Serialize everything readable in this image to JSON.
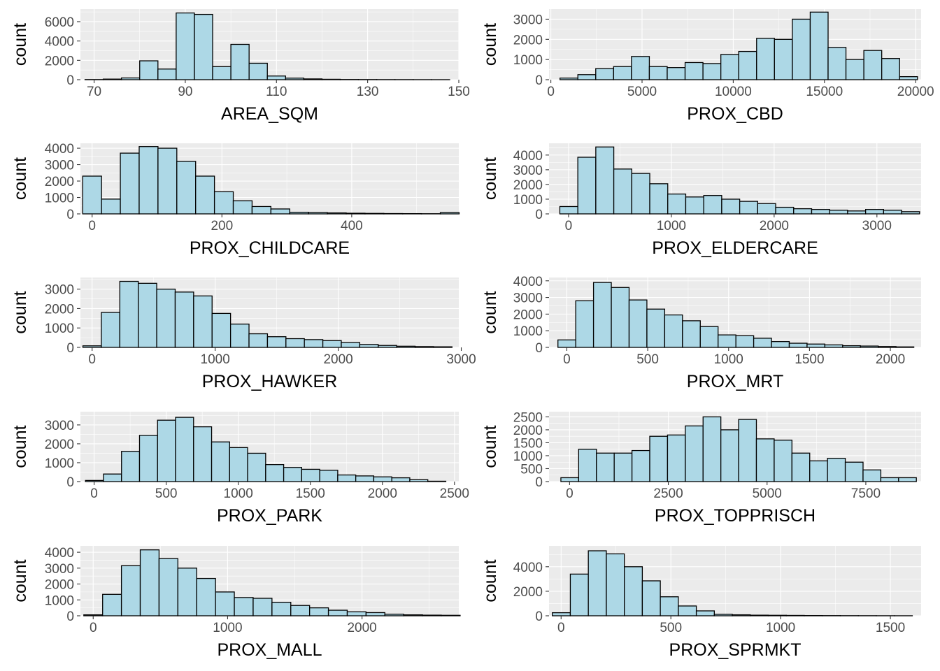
{
  "chart_data": [
    {
      "type": "bar",
      "xlabel": "AREA_SQM",
      "ylabel": "count",
      "xlim": [
        67,
        150
      ],
      "ylim": [
        0,
        7300
      ],
      "xticks": [
        70,
        90,
        110,
        130,
        150
      ],
      "yticks": [
        0,
        2000,
        4000,
        6000
      ],
      "bin_start": 68,
      "bin_width": 4,
      "values": [
        15,
        60,
        180,
        1950,
        1100,
        6900,
        6750,
        1350,
        3650,
        1700,
        380,
        160,
        80,
        40,
        20,
        15,
        10,
        8,
        5,
        3
      ]
    },
    {
      "type": "bar",
      "xlabel": "PROX_CBD",
      "ylabel": "count",
      "xlim": [
        -100,
        20300
      ],
      "ylim": [
        0,
        3500
      ],
      "xticks": [
        0,
        5000,
        10000,
        15000,
        20000
      ],
      "yticks": [
        0,
        1000,
        2000,
        3000
      ],
      "bin_start": 500,
      "bin_width": 980,
      "values": [
        80,
        250,
        550,
        650,
        1150,
        650,
        600,
        850,
        800,
        1250,
        1400,
        2050,
        2000,
        3000,
        3350,
        1600,
        1000,
        1450,
        1050,
        150
      ]
    },
    {
      "type": "bar",
      "xlabel": "PROX_CHILDCARE",
      "ylabel": "count",
      "xlim": [
        -18,
        565
      ],
      "ylim": [
        0,
        4300
      ],
      "xticks": [
        0,
        200,
        400
      ],
      "yticks": [
        0,
        1000,
        2000,
        3000,
        4000
      ],
      "bin_start": -14.5,
      "bin_width": 29,
      "values": [
        2300,
        900,
        3700,
        4100,
        4000,
        3200,
        2300,
        1350,
        800,
        450,
        300,
        100,
        80,
        60,
        40,
        30,
        20,
        15,
        10,
        80
      ]
    },
    {
      "type": "bar",
      "xlabel": "PROX_ELDERCARE",
      "ylabel": "count",
      "xlim": [
        -190,
        3430
      ],
      "ylim": [
        0,
        4800
      ],
      "xticks": [
        0,
        1000,
        2000,
        3000
      ],
      "yticks": [
        0,
        1000,
        2000,
        3000,
        4000
      ],
      "bin_start": -85,
      "bin_width": 175,
      "values": [
        500,
        3850,
        4550,
        3050,
        2750,
        2050,
        1350,
        1150,
        1250,
        1000,
        850,
        700,
        450,
        350,
        300,
        250,
        200,
        300,
        250,
        150
      ]
    },
    {
      "type": "bar",
      "xlabel": "PROX_HAWKER",
      "ylabel": "count",
      "xlim": [
        -95,
        2980
      ],
      "ylim": [
        0,
        3600
      ],
      "xticks": [
        0,
        1000,
        2000,
        3000
      ],
      "yticks": [
        0,
        1000,
        2000,
        3000
      ],
      "bin_start": -75,
      "bin_width": 150,
      "values": [
        80,
        1800,
        3400,
        3300,
        3000,
        2850,
        2650,
        1750,
        1200,
        700,
        550,
        450,
        400,
        350,
        250,
        150,
        100,
        60,
        40,
        30
      ]
    },
    {
      "type": "bar",
      "xlabel": "PROX_MRT",
      "ylabel": "count",
      "xlim": [
        -110,
        2190
      ],
      "ylim": [
        0,
        4200
      ],
      "xticks": [
        0,
        500,
        1000,
        1500,
        2000
      ],
      "yticks": [
        0,
        1000,
        2000,
        3000,
        4000
      ],
      "bin_start": -55,
      "bin_width": 110,
      "values": [
        450,
        2800,
        3900,
        3600,
        2850,
        2300,
        1950,
        1600,
        1250,
        750,
        700,
        550,
        350,
        250,
        200,
        150,
        100,
        80,
        50,
        30
      ]
    },
    {
      "type": "bar",
      "xlabel": "PROX_PARK",
      "ylabel": "count",
      "xlim": [
        -95,
        2530
      ],
      "ylim": [
        0,
        3700
      ],
      "xticks": [
        0,
        500,
        1000,
        1500,
        2000,
        2500
      ],
      "yticks": [
        0,
        1000,
        2000,
        3000
      ],
      "bin_start": -60,
      "bin_width": 125,
      "values": [
        60,
        400,
        1600,
        2450,
        3250,
        3400,
        2900,
        2100,
        1800,
        1500,
        900,
        750,
        650,
        600,
        350,
        300,
        250,
        200,
        100,
        20
      ]
    },
    {
      "type": "bar",
      "xlabel": "PROX_TOPPRISCH",
      "ylabel": "count",
      "xlim": [
        -520,
        8900
      ],
      "ylim": [
        0,
        2700
      ],
      "xticks": [
        0,
        2500,
        5000,
        7500
      ],
      "yticks": [
        0,
        500,
        1000,
        1500,
        2000,
        2500
      ],
      "bin_start": -220,
      "bin_width": 450,
      "values": [
        150,
        1250,
        1100,
        1100,
        1200,
        1750,
        1800,
        2150,
        2500,
        2000,
        2400,
        1650,
        1600,
        1100,
        800,
        900,
        750,
        450,
        150,
        150
      ]
    },
    {
      "type": "bar",
      "xlabel": "PROX_MALL",
      "ylabel": "count",
      "xlim": [
        -95,
        2720
      ],
      "ylim": [
        0,
        4400
      ],
      "xticks": [
        0,
        1000,
        2000
      ],
      "yticks": [
        0,
        1000,
        2000,
        3000,
        4000
      ],
      "bin_start": -70,
      "bin_width": 140,
      "values": [
        60,
        1350,
        3150,
        4150,
        3600,
        3000,
        2350,
        1500,
        1150,
        1100,
        850,
        650,
        500,
        350,
        250,
        200,
        100,
        60,
        40,
        30
      ]
    },
    {
      "type": "bar",
      "xlabel": "PROX_SPRMKT",
      "ylabel": "count",
      "xlim": [
        -55,
        1640
      ],
      "ylim": [
        0,
        5700
      ],
      "xticks": [
        0,
        500,
        1000,
        1500
      ],
      "yticks": [
        0,
        2000,
        4000
      ],
      "bin_start": -40,
      "bin_width": 82,
      "values": [
        250,
        3400,
        5300,
        5050,
        4000,
        2850,
        1550,
        800,
        400,
        120,
        80,
        50,
        40,
        30,
        20,
        15,
        10,
        8,
        5,
        3
      ]
    }
  ]
}
